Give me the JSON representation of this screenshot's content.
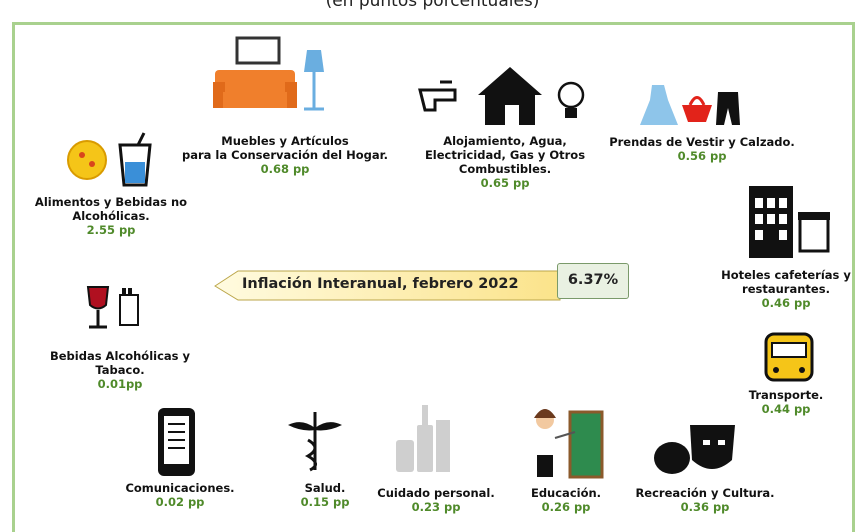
{
  "subtitle": "(en puntos porcentuales)",
  "headline": {
    "label": "Inflación Interanual, febrero 2022",
    "value": "6.37%"
  },
  "items": [
    {
      "lines": [
        "Alimentos y Bebidas no",
        "Alcohólicas."
      ],
      "value": "2.55 pp"
    },
    {
      "lines": [
        "Muebles y Artículos",
        "para la Conservación del Hogar."
      ],
      "value": "0.68 pp"
    },
    {
      "lines": [
        "Alojamiento, Agua,",
        "Electricidad, Gas y Otros",
        "Combustibles."
      ],
      "value": "0.65 pp"
    },
    {
      "lines": [
        "Prendas de Vestir y Calzado."
      ],
      "value": "0.56 pp"
    },
    {
      "lines": [
        "Hoteles cafeterías y",
        "restaurantes."
      ],
      "value": "0.46 pp"
    },
    {
      "lines": [
        "Transporte."
      ],
      "value": "0.44 pp"
    },
    {
      "lines": [
        "Recreación y Cultura."
      ],
      "value": "0.36 pp"
    },
    {
      "lines": [
        "Educación."
      ],
      "value": "0.26 pp"
    },
    {
      "lines": [
        "Cuidado personal."
      ],
      "value": "0.23 pp"
    },
    {
      "lines": [
        "Salud."
      ],
      "value": "0.15 pp"
    },
    {
      "lines": [
        "Comunicaciones."
      ],
      "value": "0.02 pp"
    },
    {
      "lines": [
        "Bebidas Alcohólicas y",
        "Tabaco."
      ],
      "value": "0.01pp"
    }
  ]
}
